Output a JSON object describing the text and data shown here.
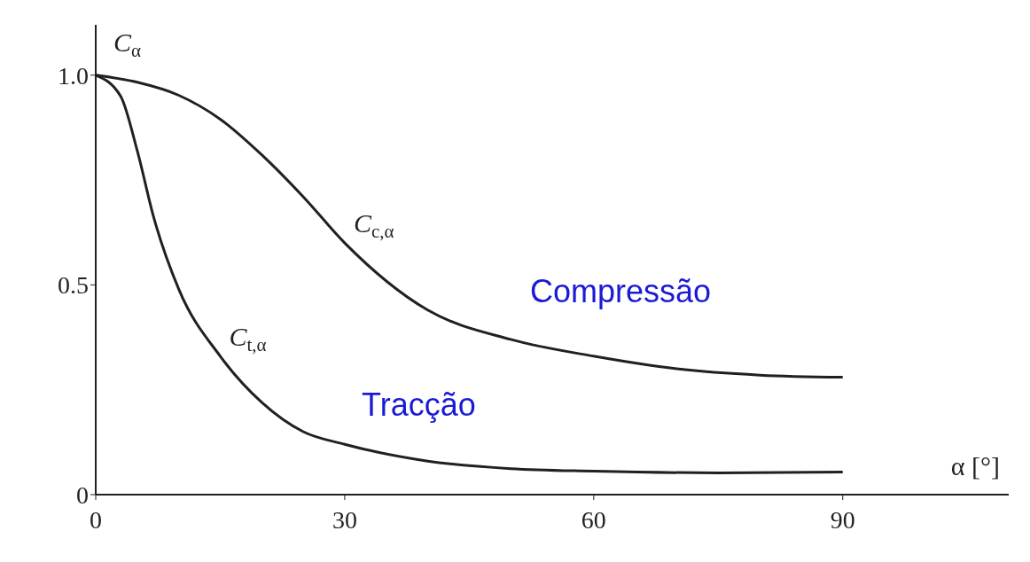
{
  "chart_data": {
    "type": "line",
    "xlabel": "α [°]",
    "ylabel": "C$_{α}$",
    "series": [
      {
        "name": "C$_{c,α}$",
        "color": "#231f20",
        "x": [
          0,
          5,
          10,
          15,
          20,
          25,
          30,
          40,
          50,
          60,
          70,
          80,
          90
        ],
        "values": [
          1.0,
          0.983,
          0.952,
          0.895,
          0.81,
          0.71,
          0.6,
          0.44,
          0.37,
          0.33,
          0.3,
          0.285,
          0.28
        ]
      },
      {
        "name": "C$_{t,α}$",
        "color": "#231f20",
        "x": [
          0,
          3,
          5,
          7,
          10,
          15,
          20,
          25,
          30,
          40,
          50,
          60,
          75,
          90
        ],
        "values": [
          1.0,
          0.95,
          0.82,
          0.66,
          0.49,
          0.33,
          0.22,
          0.15,
          0.12,
          0.08,
          0.062,
          0.056,
          0.052,
          0.054
        ]
      }
    ],
    "annotations": [
      "Compressão",
      "Tracção"
    ],
    "xlim": [
      0,
      110
    ],
    "ylim": [
      0,
      1.12
    ],
    "xticks": [
      0,
      30,
      60,
      90
    ],
    "yticks": [
      0,
      0.5,
      {
        "value": 1,
        "label": "1.0"
      }
    ],
    "grid": false,
    "legend": false,
    "marker": "none",
    "line_style": "solid"
  }
}
